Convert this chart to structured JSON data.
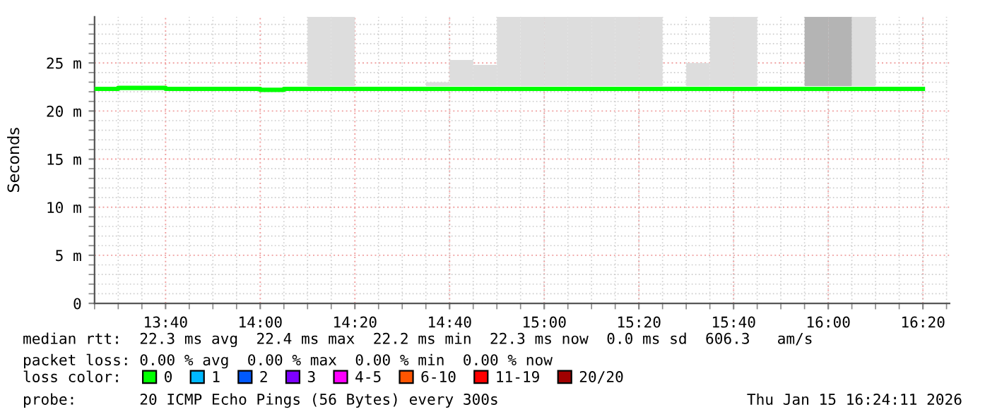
{
  "chart_data": {
    "type": "bar",
    "ylabel": "Seconds",
    "legend_title": "loss color:",
    "legend": "bottom",
    "grid": true,
    "xlim": [
      13.4167,
      16.427
    ],
    "xticks": [
      {
        "value": 13.6667,
        "label": "13:40"
      },
      {
        "value": 14.0,
        "label": "14:00"
      },
      {
        "value": 14.3333,
        "label": "14:20"
      },
      {
        "value": 14.6667,
        "label": "14:40"
      },
      {
        "value": 15.0,
        "label": "15:00"
      },
      {
        "value": 15.3333,
        "label": "15:20"
      },
      {
        "value": 15.6667,
        "label": "15:40"
      },
      {
        "value": 16.0,
        "label": "16:00"
      },
      {
        "value": 16.3333,
        "label": "16:20"
      }
    ],
    "ylim": [
      0,
      29.8
    ],
    "yticks": [
      0,
      {
        "value": 5,
        "label": "5 m"
      },
      {
        "value": 10,
        "label": "10 m"
      },
      {
        "value": 15,
        "label": "15 m"
      },
      {
        "value": 20,
        "label": "20 m"
      },
      {
        "value": 25,
        "label": "25 m"
      }
    ],
    "x": [
      14.2083,
      14.2917,
      14.375,
      14.4583,
      14.5417,
      14.625,
      14.7083,
      14.7917,
      14.875,
      14.9583,
      15.0417,
      15.125,
      15.2083,
      15.2917,
      15.375,
      15.4583,
      15.5417,
      15.625,
      15.7083,
      15.7917,
      15.875,
      15.9583,
      16.0417,
      16.125
    ],
    "series": [
      {
        "color": "#dddddd",
        "base": [
          22.6,
          22.6,
          null,
          null,
          null,
          22.6,
          22.6,
          22.6,
          22.6,
          22.6,
          22.6,
          22.6,
          22.6,
          22.6,
          22.6,
          null,
          22.6,
          22.6,
          22.6,
          null,
          null,
          22.6,
          22.6,
          22.6
        ],
        "colors": [
          "#dddddd",
          "#dddddd",
          "#dddddd",
          "#dddddd",
          "#dddddd",
          "#dddddd",
          "#dddddd",
          "#dddddd",
          "#dddddd",
          "#dddddd",
          "#dddddd",
          "#dddddd",
          "#dddddd",
          "#dddddd",
          "#dddddd",
          "#dddddd",
          "#dddddd",
          "#dddddd",
          "#dddddd",
          "#dddddd",
          "#dddddd",
          "#b4b4b4",
          "#b4b4b4",
          "#dddddd"
        ],
        "values": [
          7.2,
          7.2,
          null,
          null,
          null,
          0.4,
          2.7,
          2.2,
          7.2,
          7.2,
          7.2,
          7.2,
          7.2,
          7.2,
          7.2,
          null,
          2.4,
          7.2,
          7.2,
          null,
          null,
          7.2,
          7.2,
          7.2
        ]
      },
      {
        "type": "step",
        "name": "0",
        "color": "#00ff00",
        "x": [
          13.4167,
          13.5,
          13.5833,
          13.6667,
          13.75,
          13.8333,
          13.9167,
          14.0,
          14.0833,
          14.1667,
          14.25,
          14.3333,
          14.4167,
          14.5,
          14.5833,
          14.6667,
          14.75,
          14.8333,
          14.9167,
          15.0,
          15.0833,
          15.1667,
          15.25,
          15.3333,
          15.4167,
          15.5,
          15.5833,
          15.6667,
          15.75,
          15.8333,
          15.9167,
          16.0,
          16.0833,
          16.1667,
          16.25,
          16.3333
        ],
        "values": [
          22.3,
          22.4,
          22.4,
          22.3,
          22.3,
          22.3,
          22.3,
          22.2,
          22.3,
          22.3,
          22.3,
          22.3,
          22.3,
          22.3,
          22.3,
          22.3,
          22.3,
          22.3,
          22.3,
          22.3,
          22.3,
          22.3,
          22.3,
          22.3,
          22.3,
          22.3,
          22.3,
          22.3,
          22.3,
          22.3,
          22.3,
          22.3,
          22.3,
          22.3,
          22.3,
          22.3
        ]
      },
      {
        "type": "step",
        "name": "1",
        "color": "#00b8ff",
        "values": [
          null,
          null,
          null,
          null,
          null,
          null,
          null,
          null,
          null,
          null,
          null,
          null,
          null,
          null,
          null,
          null,
          null,
          null,
          null,
          null,
          null,
          null,
          null,
          null
        ]
      },
      {
        "type": "step",
        "name": "2",
        "color": "#0059ff",
        "values": [
          null,
          null,
          null,
          null,
          null,
          null,
          null,
          null,
          null,
          null,
          null,
          null,
          null,
          null,
          null,
          null,
          null,
          null,
          null,
          null,
          null,
          null,
          null,
          null
        ]
      },
      {
        "type": "step",
        "name": "3",
        "color": "#7e00ff",
        "values": [
          null,
          null,
          null,
          null,
          null,
          null,
          null,
          null,
          null,
          null,
          null,
          null,
          null,
          null,
          null,
          null,
          null,
          null,
          null,
          null,
          null,
          null,
          null,
          null
        ]
      },
      {
        "type": "step",
        "name": "4-5",
        "color": "#ff00ff",
        "values": [
          null,
          null,
          null,
          null,
          null,
          null,
          null,
          null,
          null,
          null,
          null,
          null,
          null,
          null,
          null,
          null,
          null,
          null,
          null,
          null,
          null,
          null,
          null,
          null
        ]
      },
      {
        "type": "step",
        "name": "6-10",
        "color": "#ff5500",
        "values": [
          null,
          null,
          null,
          null,
          null,
          null,
          null,
          null,
          null,
          null,
          null,
          null,
          null,
          null,
          null,
          null,
          null,
          null,
          null,
          null,
          null,
          null,
          null,
          null
        ]
      },
      {
        "type": "step",
        "name": "11-19",
        "color": "#ff0000",
        "values": [
          null,
          null,
          null,
          null,
          null,
          null,
          null,
          null,
          null,
          null,
          null,
          null,
          null,
          null,
          null,
          null,
          null,
          null,
          null,
          null,
          null,
          null,
          null,
          null
        ]
      },
      {
        "type": "step",
        "name": "20/20",
        "color": "#a10000",
        "values": [
          null,
          null,
          null,
          null,
          null,
          null,
          null,
          null,
          null,
          null,
          null,
          null,
          null,
          null,
          null,
          null,
          null,
          null,
          null,
          null,
          null,
          null,
          null,
          null
        ]
      }
    ],
    "annotations": [
      "median rtt:  22.3 ms avg  22.4 ms max  22.2 ms min  22.3 ms now  0.0 ms sd  606.3   am/s",
      "packet loss: 0.00 % avg  0.00 % max  0.00 % min  0.00 % now",
      "probe:       20 ICMP Echo Pings (56 Bytes) every 300s",
      "Thu Jan 15 16:24:11 2026"
    ]
  }
}
